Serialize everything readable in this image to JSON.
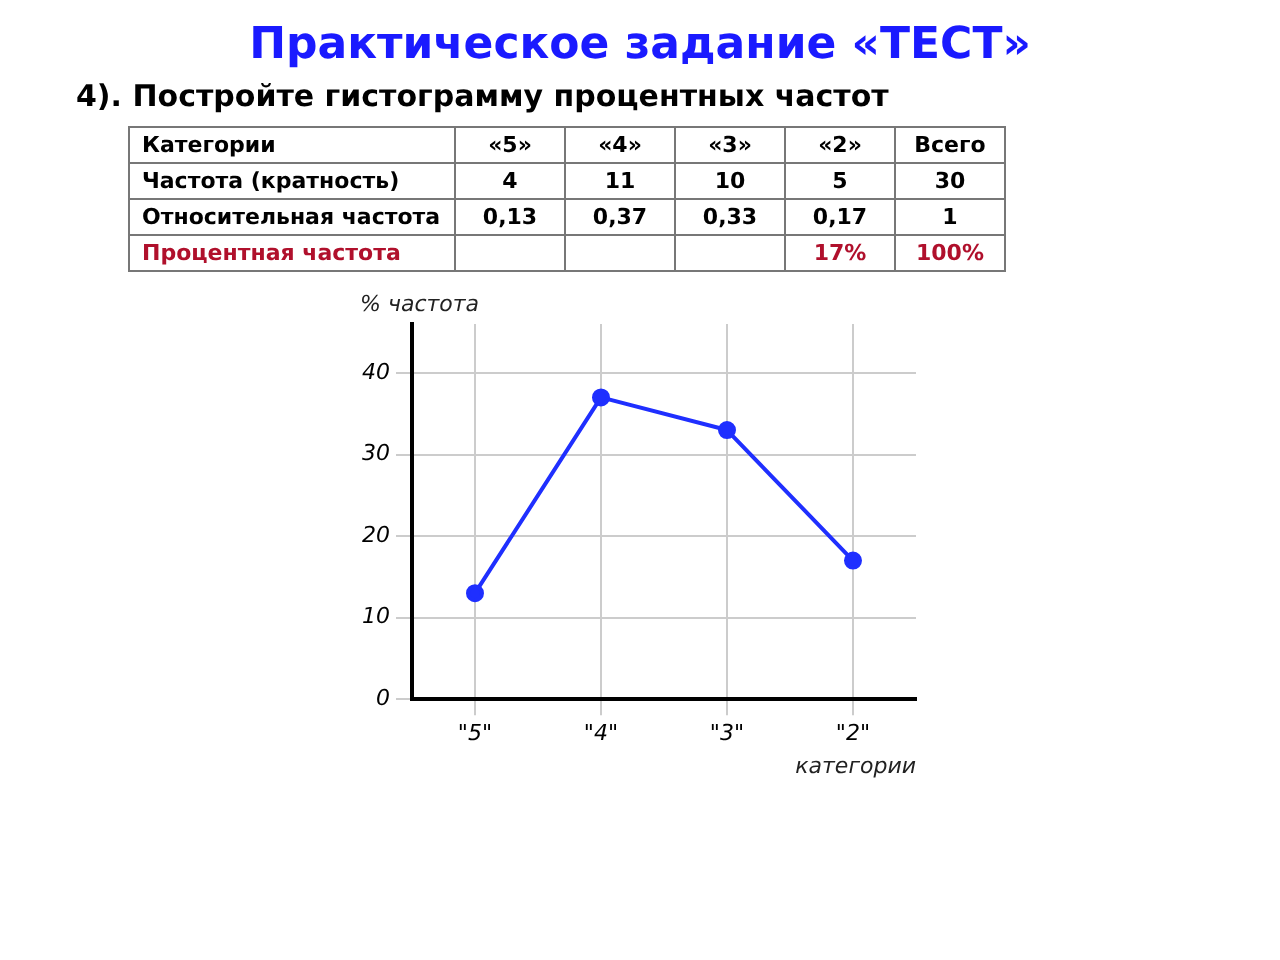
{
  "chart_data": {
    "type": "line",
    "title": "Практическое задание «ТЕСТ»",
    "subtitle": "4).  Постройте гистограмму процентных частот",
    "annotations": [
      "Категории",
      "«5»",
      "«4»",
      "«3»",
      "«2»",
      "Всего",
      "Частота (кратность)",
      "4",
      "11",
      "10",
      "5",
      "30",
      "Относительная частота",
      "0,13",
      "0,37",
      "0,33",
      "0,17",
      "1",
      "Процентная частота",
      "17%",
      "100%"
    ],
    "categories": [
      "\"5\"",
      "\"4\"",
      "\"3\"",
      "\"2\""
    ],
    "values": [
      13,
      37,
      33,
      17
    ],
    "color": "#1f2fff",
    "xlabel": "категории",
    "ylabel": "% частота",
    "ylim": [
      0,
      46
    ],
    "yticks": [
      0,
      10,
      20,
      30,
      40
    ],
    "grid": true,
    "legend": false,
    "marker": "circle",
    "line_style": "solid"
  }
}
